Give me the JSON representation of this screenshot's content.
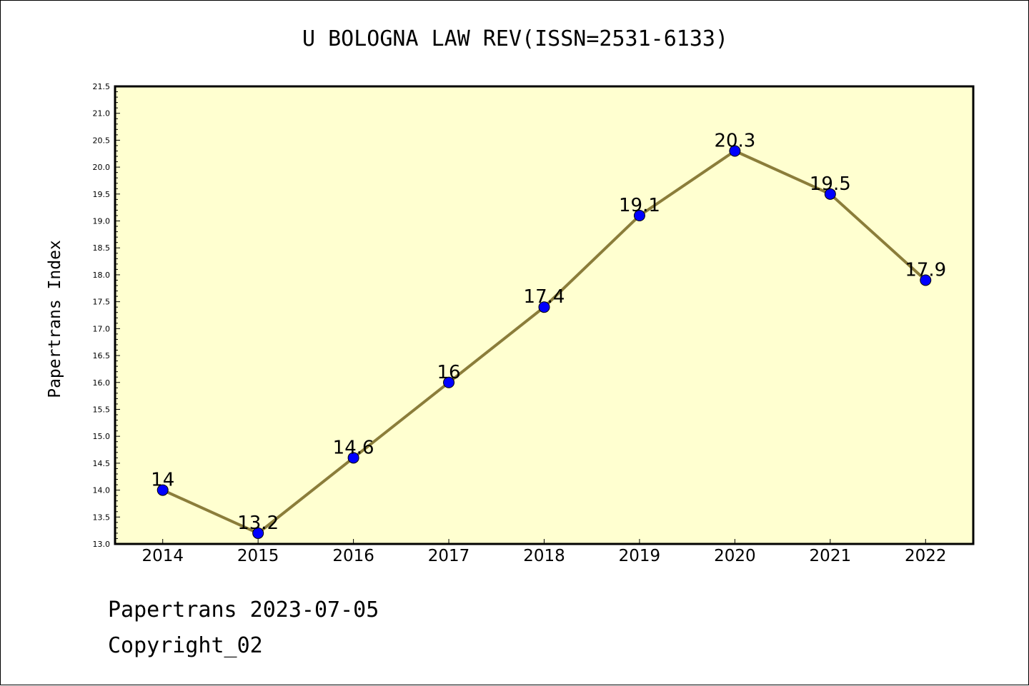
{
  "chart_data": {
    "type": "line",
    "title": "U BOLOGNA LAW REV(ISSN=2531-6133)",
    "xlabel": "",
    "ylabel": "Papertrans Index",
    "x": [
      2014,
      2015,
      2016,
      2017,
      2018,
      2019,
      2020,
      2021,
      2022
    ],
    "series": [
      {
        "values": [
          14,
          13.2,
          14.6,
          16,
          17.4,
          19.1,
          20.3,
          19.5,
          17.9
        ]
      }
    ],
    "data_labels": [
      "14",
      "13.2",
      "14.6",
      "16",
      "17.4",
      "19.1",
      "20.3",
      "19.5",
      "17.9"
    ],
    "y_ticks": [
      "13.0",
      "13.5",
      "14.0",
      "14.5",
      "15.0",
      "15.5",
      "16.0",
      "16.5",
      "17.0",
      "17.5",
      "18.0",
      "18.5",
      "19.0",
      "19.5",
      "20.0",
      "20.5",
      "21.0",
      "21.5"
    ],
    "ylim": [
      13.0,
      21.5
    ],
    "xlim": [
      2013.5,
      2022.5
    ],
    "grid": false,
    "colors": {
      "line": "#8b7d3a",
      "marker": "#0000ff",
      "plot_bg": "#ffffd0"
    }
  },
  "footer": {
    "date": "Papertrans 2023-07-05",
    "copyright": "Copyright_02"
  }
}
